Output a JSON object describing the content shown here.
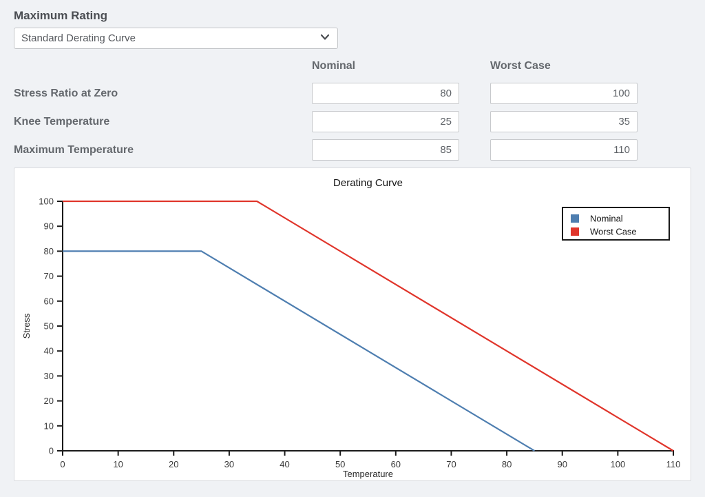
{
  "header": {
    "title": "Maximum Rating"
  },
  "preset_select": {
    "value": "Standard Derating Curve"
  },
  "table": {
    "columns": {
      "nominal": "Nominal",
      "worst_case": "Worst Case"
    },
    "rows": [
      {
        "label": "Stress Ratio at Zero",
        "nominal": "80",
        "worst_case": "100"
      },
      {
        "label": "Knee Temperature",
        "nominal": "25",
        "worst_case": "35"
      },
      {
        "label": "Maximum Temperature",
        "nominal": "85",
        "worst_case": "110"
      }
    ]
  },
  "colors": {
    "nominal_line": "#4e7eb0",
    "worst_case_line": "#e0352b",
    "axis": "#1a1a1a",
    "page_background": "#f0f2f5"
  },
  "chart_data": {
    "type": "line",
    "title": "Derating Curve",
    "xlabel": "Temperature",
    "ylabel": "Stress",
    "xlim": [
      0,
      110
    ],
    "ylim": [
      0,
      100
    ],
    "x_ticks": [
      0,
      10,
      20,
      30,
      40,
      50,
      60,
      70,
      80,
      90,
      100,
      110
    ],
    "y_ticks": [
      0,
      10,
      20,
      30,
      40,
      50,
      60,
      70,
      80,
      90,
      100
    ],
    "grid": false,
    "legend_position": "top-right",
    "series": [
      {
        "name": "Nominal",
        "color": "#4e7eb0",
        "points": [
          [
            0,
            80
          ],
          [
            25,
            80
          ],
          [
            85,
            0
          ]
        ]
      },
      {
        "name": "Worst Case",
        "color": "#e0352b",
        "points": [
          [
            0,
            100
          ],
          [
            35,
            100
          ],
          [
            110,
            0
          ]
        ]
      }
    ]
  }
}
